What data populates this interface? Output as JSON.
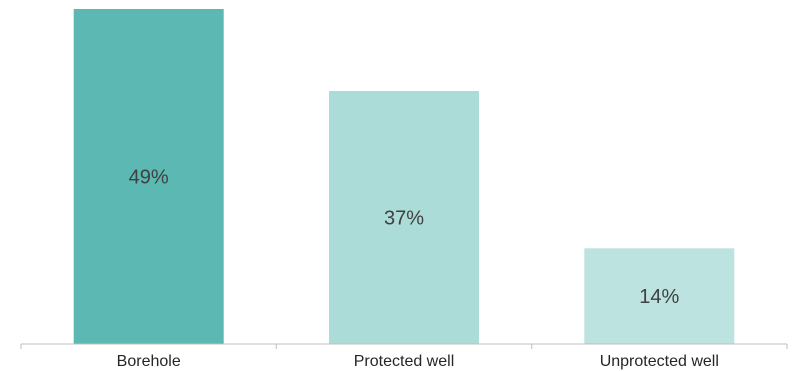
{
  "chart_data": {
    "type": "bar",
    "categories": [
      "Borehole",
      "Protected well",
      "Unprotected well"
    ],
    "values": [
      49,
      37,
      14
    ],
    "data_labels": [
      "49%",
      "37%",
      "14%"
    ],
    "bar_colors": [
      "#5bb8b2",
      "#acdcd8",
      "#bce3e0"
    ],
    "axis_color": "#bfbfbf",
    "ylim": [
      0,
      50
    ],
    "grid": false,
    "legend": "none"
  }
}
